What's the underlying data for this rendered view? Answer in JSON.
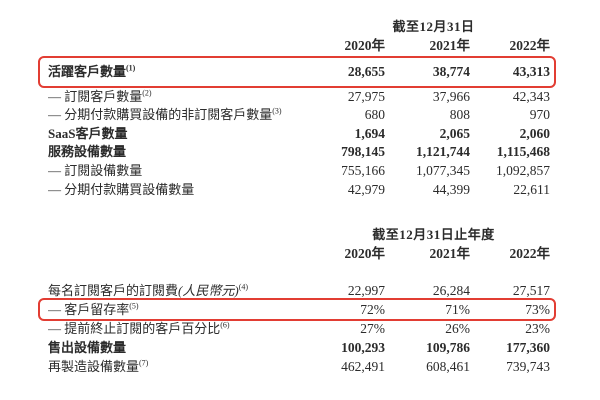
{
  "page": {
    "background_color": "#ffffff",
    "text_color": "#2b2b2b",
    "highlight_box_color": "#e23d33"
  },
  "sections": [
    {
      "period_header": "截至12月31日",
      "years": [
        "2020年",
        "2021年",
        "2022年"
      ],
      "rows": [
        {
          "label": "活躍客戶數量",
          "sup": "(1)",
          "bold": true,
          "boxed": true,
          "values": [
            "28,655",
            "38,774",
            "43,313"
          ]
        },
        {
          "label": "— 訂閱客戶數量",
          "sup": "(2)",
          "values": [
            "27,975",
            "37,966",
            "42,343"
          ]
        },
        {
          "label": "— 分期付款購買設備的非訂閱客戶數量",
          "sup": "(3)",
          "values": [
            "680",
            "808",
            "970"
          ]
        },
        {
          "label": "SaaS客戶數量",
          "bold": true,
          "values": [
            "1,694",
            "2,065",
            "2,060"
          ]
        },
        {
          "label": "服務設備數量",
          "bold": true,
          "values": [
            "798,145",
            "1,121,744",
            "1,115,468"
          ]
        },
        {
          "label": "— 訂閱設備數量",
          "values": [
            "755,166",
            "1,077,345",
            "1,092,857"
          ]
        },
        {
          "label": "— 分期付款購買設備數量",
          "values": [
            "42,979",
            "44,399",
            "22,611"
          ]
        }
      ]
    },
    {
      "period_header": "截至12月31日止年度",
      "years": [
        "2020年",
        "2021年",
        "2022年"
      ],
      "rows": [
        {
          "label": "每名訂閱客戶的訂閱費",
          "label_italic": "(人民幣元)",
          "sup": "(4)",
          "values": [
            "22,997",
            "26,284",
            "27,517"
          ]
        },
        {
          "label": "— 客戶留存率",
          "sup": "(5)",
          "boxed": true,
          "values": [
            "72%",
            "71%",
            "73%"
          ]
        },
        {
          "label": "— 提前終止訂閱的客戶百分比",
          "sup": "(6)",
          "values": [
            "27%",
            "26%",
            "23%"
          ]
        },
        {
          "label": "售出設備數量",
          "bold": true,
          "values": [
            "100,293",
            "109,786",
            "177,360"
          ]
        },
        {
          "label": "再製造設備數量",
          "sup": "(7)",
          "values": [
            "462,491",
            "608,461",
            "739,743"
          ]
        }
      ]
    }
  ]
}
